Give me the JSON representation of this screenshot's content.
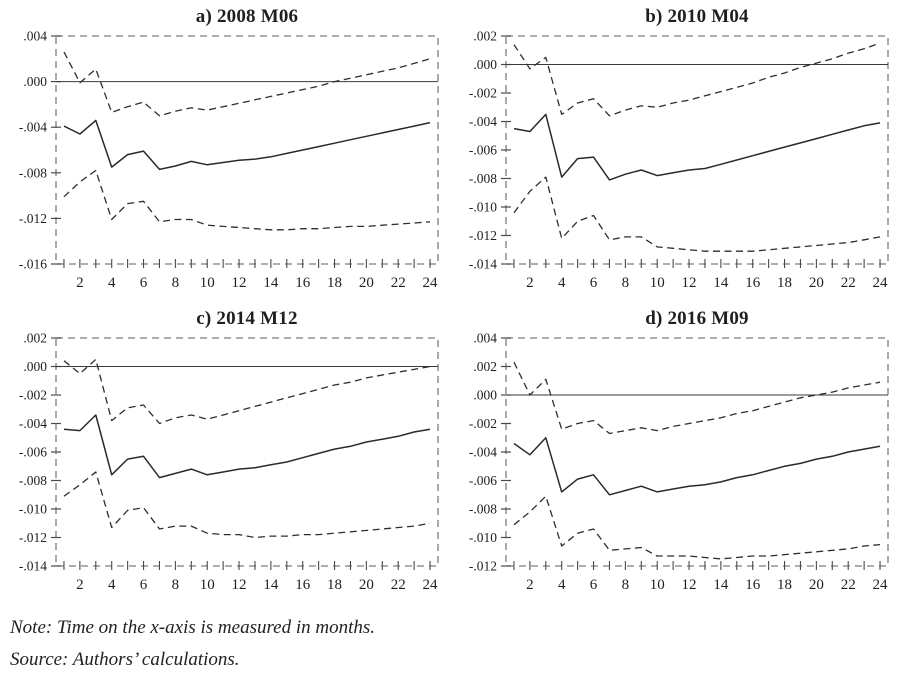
{
  "colors": {
    "line": "#2a2a2a",
    "band": "#2e2e2e",
    "frame": "#7d7d7d",
    "tick": "#4a4a4a",
    "zero_line": "#3a3a3a",
    "text": "#1f1f1f"
  },
  "footer": {
    "note": "Note: Time on the x-axis is measured in months.",
    "source": "Source: Authors’ calculations."
  },
  "chart_data": [
    {
      "type": "line",
      "title": "a) 2008 M06",
      "xlabel": "",
      "ylabel": "",
      "x": [
        1,
        2,
        3,
        4,
        5,
        6,
        7,
        8,
        9,
        10,
        11,
        12,
        13,
        14,
        15,
        16,
        17,
        18,
        19,
        20,
        21,
        22,
        23,
        24
      ],
      "xticks_labeled": [
        2,
        4,
        6,
        8,
        10,
        12,
        14,
        16,
        18,
        20,
        22,
        24
      ],
      "ylim": [
        -0.016,
        0.004
      ],
      "ytick_values": [
        0.004,
        0.0,
        -0.004,
        -0.008,
        -0.012,
        -0.016
      ],
      "ytick_labels": [
        ".004",
        ".000",
        "-.004",
        "-.008",
        "-.012",
        "-.016"
      ],
      "grid": false,
      "legend": "none",
      "series": [
        {
          "name": "response",
          "style": "solid",
          "values": [
            -0.0039,
            -0.0046,
            -0.0034,
            -0.0075,
            -0.0064,
            -0.0061,
            -0.0077,
            -0.0074,
            -0.007,
            -0.0073,
            -0.0071,
            -0.0069,
            -0.0068,
            -0.0066,
            -0.0063,
            -0.006,
            -0.0057,
            -0.0054,
            -0.0051,
            -0.0048,
            -0.0045,
            -0.0042,
            -0.0039,
            -0.0036
          ]
        },
        {
          "name": "upper_band",
          "style": "dashed",
          "values": [
            0.0026,
            -0.0001,
            0.0011,
            -0.0027,
            -0.0022,
            -0.0018,
            -0.003,
            -0.0026,
            -0.0023,
            -0.0025,
            -0.0022,
            -0.0019,
            -0.0016,
            -0.0013,
            -0.001,
            -0.0007,
            -0.0004,
            0.0,
            0.0003,
            0.0006,
            0.0009,
            0.0012,
            0.0016,
            0.002
          ]
        },
        {
          "name": "lower_band",
          "style": "dashed",
          "values": [
            -0.0101,
            -0.0088,
            -0.0078,
            -0.0121,
            -0.0107,
            -0.0105,
            -0.0123,
            -0.0121,
            -0.0121,
            -0.0126,
            -0.0127,
            -0.0128,
            -0.0129,
            -0.013,
            -0.013,
            -0.0129,
            -0.0129,
            -0.0128,
            -0.0127,
            -0.0127,
            -0.0126,
            -0.0125,
            -0.0124,
            -0.0123
          ]
        }
      ]
    },
    {
      "type": "line",
      "title": "b) 2010 M04",
      "xlabel": "",
      "ylabel": "",
      "x": [
        1,
        2,
        3,
        4,
        5,
        6,
        7,
        8,
        9,
        10,
        11,
        12,
        13,
        14,
        15,
        16,
        17,
        18,
        19,
        20,
        21,
        22,
        23,
        24
      ],
      "xticks_labeled": [
        2,
        4,
        6,
        8,
        10,
        12,
        14,
        16,
        18,
        20,
        22,
        24
      ],
      "ylim": [
        -0.014,
        0.002
      ],
      "ytick_values": [
        0.002,
        0.0,
        -0.002,
        -0.004,
        -0.006,
        -0.008,
        -0.01,
        -0.012,
        -0.014
      ],
      "ytick_labels": [
        ".002",
        ".000",
        "-.002",
        "-.004",
        "-.006",
        "-.008",
        "-.010",
        "-.012",
        "-.014"
      ],
      "grid": false,
      "legend": "none",
      "series": [
        {
          "name": "response",
          "style": "solid",
          "values": [
            -0.0045,
            -0.0047,
            -0.0035,
            -0.0079,
            -0.0066,
            -0.0065,
            -0.0081,
            -0.0077,
            -0.0074,
            -0.0078,
            -0.0076,
            -0.0074,
            -0.0073,
            -0.007,
            -0.0067,
            -0.0064,
            -0.0061,
            -0.0058,
            -0.0055,
            -0.0052,
            -0.0049,
            -0.0046,
            -0.0043,
            -0.0041
          ]
        },
        {
          "name": "upper_band",
          "style": "dashed",
          "values": [
            0.0014,
            -0.0003,
            0.0005,
            -0.0035,
            -0.0027,
            -0.0024,
            -0.0036,
            -0.0032,
            -0.0029,
            -0.003,
            -0.0027,
            -0.0025,
            -0.0022,
            -0.0019,
            -0.0016,
            -0.0013,
            -0.0009,
            -0.0006,
            -0.0002,
            0.0001,
            0.0004,
            0.0008,
            0.0011,
            0.0015
          ]
        },
        {
          "name": "lower_band",
          "style": "dashed",
          "values": [
            -0.0104,
            -0.0089,
            -0.0079,
            -0.0122,
            -0.011,
            -0.0106,
            -0.0123,
            -0.0121,
            -0.0121,
            -0.0128,
            -0.0129,
            -0.013,
            -0.0131,
            -0.0131,
            -0.0131,
            -0.0131,
            -0.013,
            -0.0129,
            -0.0128,
            -0.0127,
            -0.0126,
            -0.0125,
            -0.0123,
            -0.0121
          ]
        }
      ]
    },
    {
      "type": "line",
      "title": "c) 2014 M12",
      "xlabel": "",
      "ylabel": "",
      "x": [
        1,
        2,
        3,
        4,
        5,
        6,
        7,
        8,
        9,
        10,
        11,
        12,
        13,
        14,
        15,
        16,
        17,
        18,
        19,
        20,
        21,
        22,
        23,
        24
      ],
      "xticks_labeled": [
        2,
        4,
        6,
        8,
        10,
        12,
        14,
        16,
        18,
        20,
        22,
        24
      ],
      "ylim": [
        -0.014,
        0.002
      ],
      "ytick_values": [
        0.002,
        0.0,
        -0.002,
        -0.004,
        -0.006,
        -0.008,
        -0.01,
        -0.012,
        -0.014
      ],
      "ytick_labels": [
        ".002",
        ".000",
        "-.002",
        "-.004",
        "-.006",
        "-.008",
        "-.010",
        "-.012",
        "-.014"
      ],
      "grid": false,
      "legend": "none",
      "series": [
        {
          "name": "response",
          "style": "solid",
          "values": [
            -0.0044,
            -0.0045,
            -0.0034,
            -0.0076,
            -0.0065,
            -0.0063,
            -0.0078,
            -0.0075,
            -0.0072,
            -0.0076,
            -0.0074,
            -0.0072,
            -0.0071,
            -0.0069,
            -0.0067,
            -0.0064,
            -0.0061,
            -0.0058,
            -0.0056,
            -0.0053,
            -0.0051,
            -0.0049,
            -0.0046,
            -0.0044
          ]
        },
        {
          "name": "upper_band",
          "style": "dashed",
          "values": [
            0.0004,
            -0.0005,
            0.0005,
            -0.0038,
            -0.0029,
            -0.0027,
            -0.004,
            -0.0036,
            -0.0034,
            -0.0037,
            -0.0034,
            -0.0031,
            -0.0028,
            -0.0025,
            -0.0022,
            -0.0019,
            -0.0016,
            -0.0013,
            -0.0011,
            -0.0008,
            -0.0006,
            -0.0004,
            -0.0002,
            0.0
          ]
        },
        {
          "name": "lower_band",
          "style": "dashed",
          "values": [
            -0.0091,
            -0.0083,
            -0.0074,
            -0.0113,
            -0.0101,
            -0.0099,
            -0.0114,
            -0.0112,
            -0.0112,
            -0.0117,
            -0.0118,
            -0.0118,
            -0.012,
            -0.0119,
            -0.0119,
            -0.0118,
            -0.0118,
            -0.0117,
            -0.0116,
            -0.0115,
            -0.0114,
            -0.0113,
            -0.0112,
            -0.011
          ]
        }
      ]
    },
    {
      "type": "line",
      "title": "d) 2016 M09",
      "xlabel": "",
      "ylabel": "",
      "x": [
        1,
        2,
        3,
        4,
        5,
        6,
        7,
        8,
        9,
        10,
        11,
        12,
        13,
        14,
        15,
        16,
        17,
        18,
        19,
        20,
        21,
        22,
        23,
        24
      ],
      "xticks_labeled": [
        2,
        4,
        6,
        8,
        10,
        12,
        14,
        16,
        18,
        20,
        22,
        24
      ],
      "ylim": [
        -0.012,
        0.004
      ],
      "ytick_values": [
        0.004,
        0.002,
        0.0,
        -0.002,
        -0.004,
        -0.006,
        -0.008,
        -0.01,
        -0.012
      ],
      "ytick_labels": [
        ".004",
        ".002",
        ".000",
        "-.002",
        "-.004",
        "-.006",
        "-.008",
        "-.010",
        "-.012"
      ],
      "grid": false,
      "legend": "none",
      "series": [
        {
          "name": "response",
          "style": "solid",
          "values": [
            -0.0034,
            -0.0042,
            -0.003,
            -0.0068,
            -0.0059,
            -0.0056,
            -0.007,
            -0.0067,
            -0.0064,
            -0.0068,
            -0.0066,
            -0.0064,
            -0.0063,
            -0.0061,
            -0.0058,
            -0.0056,
            -0.0053,
            -0.005,
            -0.0048,
            -0.0045,
            -0.0043,
            -0.004,
            -0.0038,
            -0.0036
          ]
        },
        {
          "name": "upper_band",
          "style": "dashed",
          "values": [
            0.0023,
            0.0,
            0.0011,
            -0.0024,
            -0.002,
            -0.0018,
            -0.0027,
            -0.0025,
            -0.0023,
            -0.0025,
            -0.0022,
            -0.002,
            -0.0018,
            -0.0016,
            -0.0013,
            -0.0011,
            -0.0008,
            -0.0005,
            -0.0002,
            0.0,
            0.0002,
            0.0005,
            0.0007,
            0.0009
          ]
        },
        {
          "name": "lower_band",
          "style": "dashed",
          "values": [
            -0.0091,
            -0.0082,
            -0.0071,
            -0.0106,
            -0.0097,
            -0.0094,
            -0.0109,
            -0.0108,
            -0.0107,
            -0.0113,
            -0.0113,
            -0.0113,
            -0.0114,
            -0.0115,
            -0.0114,
            -0.0113,
            -0.0113,
            -0.0112,
            -0.0111,
            -0.011,
            -0.0109,
            -0.0108,
            -0.0106,
            -0.0105
          ]
        }
      ]
    }
  ]
}
